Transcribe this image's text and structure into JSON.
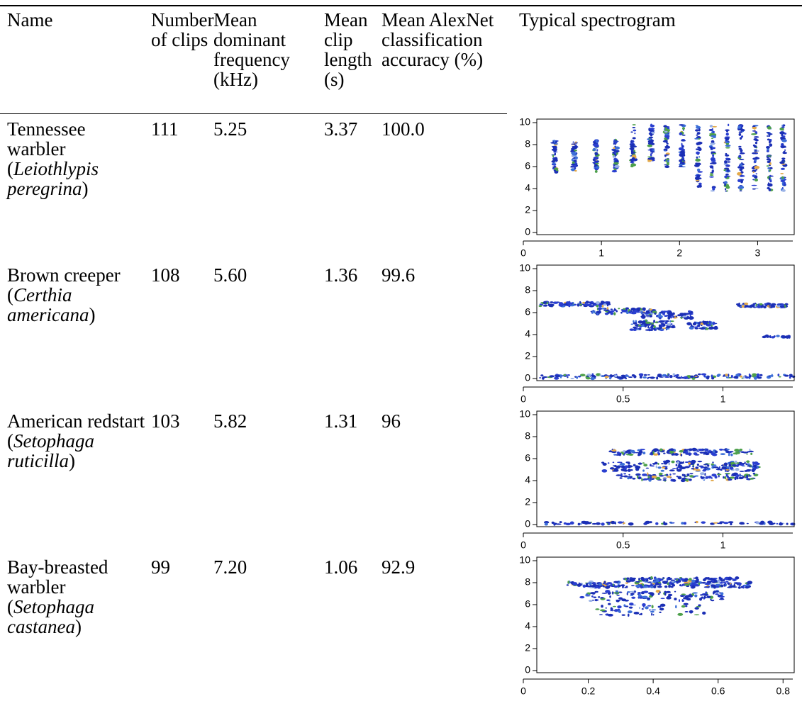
{
  "header": {
    "columns": [
      "Name",
      "Number of clips",
      "Mean dominant frequency (kHz)",
      "Mean clip length (s)",
      "Mean AlexNet classification accuracy (%)",
      "Typical spectrogram"
    ]
  },
  "table": {
    "rows": [
      {
        "common_name": "Tennessee warbler",
        "open": "(",
        "scientific_name": "Leiothlypis peregrina",
        "close": ")",
        "clips": "111",
        "frequency": "5.25",
        "length": "3.37",
        "accuracy": "100.0",
        "spectrogram": {
          "ylim": [
            0,
            10
          ],
          "yticks": [
            0,
            2,
            4,
            6,
            8,
            10
          ],
          "xlim": [
            0,
            3.45
          ],
          "xticks": [
            0,
            1,
            2,
            3
          ]
        }
      },
      {
        "common_name": "Brown creeper",
        "open": "(",
        "scientific_name": "Certhia americana",
        "close": ")",
        "clips": "108",
        "frequency": "5.60",
        "length": "1.36",
        "accuracy": "99.6",
        "spectrogram": {
          "ylim": [
            0,
            10
          ],
          "yticks": [
            0,
            2,
            4,
            6,
            8,
            10
          ],
          "xlim": [
            0,
            1.35
          ],
          "xticks": [
            0,
            0.5,
            1
          ]
        }
      },
      {
        "common_name": "American redstart",
        "open": "(",
        "scientific_name": "Setophaga ruticilla",
        "close": ")",
        "clips": "103",
        "frequency": "5.82",
        "length": "1.31",
        "accuracy": "96",
        "spectrogram": {
          "ylim": [
            0,
            10
          ],
          "yticks": [
            0,
            2,
            4,
            6,
            8,
            10
          ],
          "xlim": [
            0,
            1.35
          ],
          "xticks": [
            0,
            0.5,
            1
          ]
        }
      },
      {
        "common_name": "Bay-breasted warbler",
        "open": "(",
        "scientific_name": "Setophaga castanea",
        "close": ")",
        "clips": "99",
        "frequency": "7.20",
        "length": "1.06",
        "accuracy": "92.9",
        "spectrogram": {
          "ylim": [
            0,
            10
          ],
          "yticks": [
            0,
            2,
            4,
            6,
            8,
            10
          ],
          "xlim": [
            0,
            0.83
          ],
          "xticks": [
            0,
            0.2,
            0.4,
            0.6,
            0.8
          ]
        }
      }
    ]
  }
}
